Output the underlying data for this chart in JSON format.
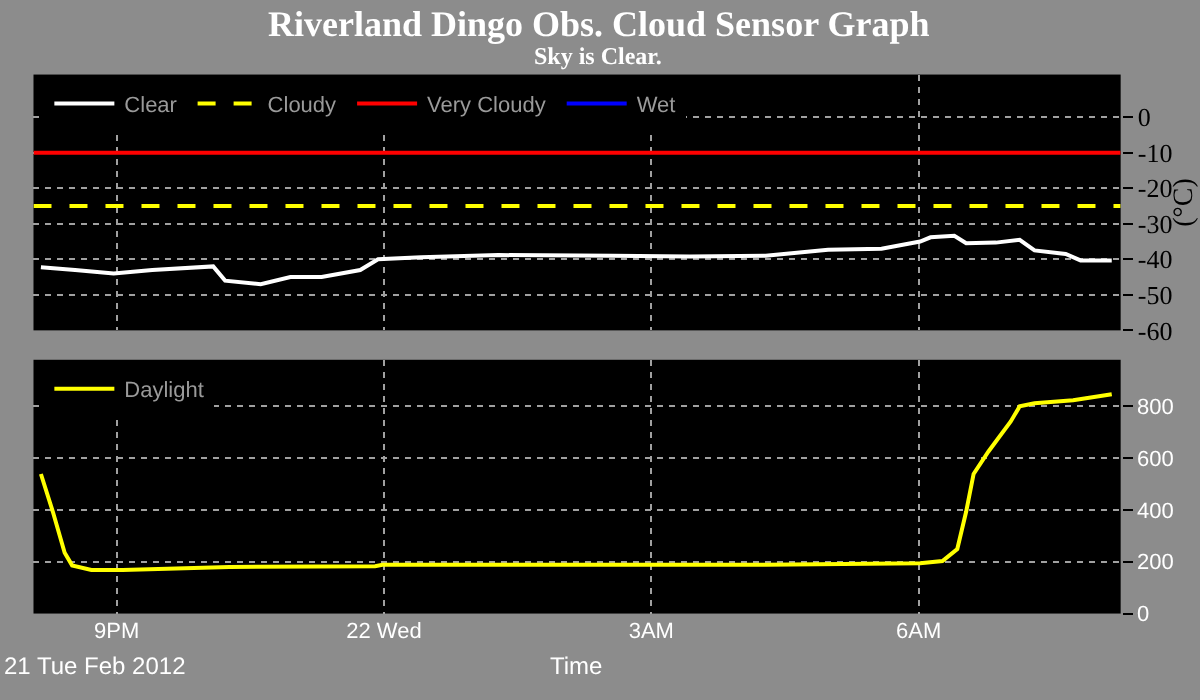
{
  "chart_data": [
    {
      "type": "line",
      "title": "Riverland Dingo Obs. Cloud Sensor Graph",
      "subtitle": "Sky is Clear.",
      "ylabel": "(°C)",
      "x": [
        "2012-02-21T20:09",
        "2012-02-21T20:32",
        "2012-02-21T20:58",
        "2012-02-21T21:24",
        "2012-02-21T22:05",
        "2012-02-21T22:13",
        "2012-02-21T22:37",
        "2012-02-21T22:57",
        "2012-02-21T23:18",
        "2012-02-21T23:44",
        "2012-02-21T23:56",
        "2012-02-22T00:25",
        "2012-02-22T01:17",
        "2012-02-22T02:34",
        "2012-02-22T03:26",
        "2012-02-22T04:17",
        "2012-02-22T04:59",
        "2012-02-22T05:35",
        "2012-02-22T06:01",
        "2012-02-22T06:08",
        "2012-02-22T06:24",
        "2012-02-22T06:32",
        "2012-02-22T06:52",
        "2012-02-22T07:08",
        "2012-02-22T07:18",
        "2012-02-22T07:39",
        "2012-02-22T07:49",
        "2012-02-22T08:10"
      ],
      "series": [
        {
          "name": "Clear",
          "color": "#ffffff",
          "values": [
            -42.2,
            -43,
            -44,
            -43,
            -42,
            -46,
            -47,
            -45,
            -45,
            -43,
            -40,
            -39.4,
            -38.8,
            -39,
            -39.2,
            -39,
            -37.3,
            -37,
            -35,
            -33.8,
            -33.4,
            -35.5,
            -35.3,
            -34.5,
            -37.5,
            -38.5,
            -40.3,
            -40.3
          ]
        },
        {
          "name": "Cloudy",
          "color": "#ffff00",
          "line_style": "dashed",
          "x": [
            "2012-02-21T20:04",
            "2012-02-22T08:16"
          ],
          "values": [
            -25,
            -25
          ]
        },
        {
          "name": "Very Cloudy",
          "color": "#ff0000",
          "x": [
            "2012-02-21T20:04",
            "2012-02-22T08:16"
          ],
          "values": [
            -10,
            -10
          ]
        },
        {
          "name": "Wet",
          "color": "#0000ff",
          "values": [
            null,
            null,
            null,
            null,
            null,
            null,
            null,
            null,
            null,
            null,
            null,
            null,
            null,
            null,
            null,
            null,
            null,
            null,
            null,
            null,
            null,
            null,
            null,
            null,
            null,
            null,
            null,
            null
          ]
        }
      ],
      "xlim": [
        "2012-02-21T20:04",
        "2012-02-22T08:16"
      ],
      "xticks": [
        {
          "value": "2012-02-21T21:00",
          "label": null
        },
        {
          "value": "2012-02-22T00:00",
          "label": null
        },
        {
          "value": "2012-02-22T03:00",
          "label": null
        },
        {
          "value": "2012-02-22T06:00",
          "label": null
        }
      ],
      "ylim": [
        -60,
        12
      ],
      "yticks": [
        0,
        -10,
        -20,
        -30,
        -40,
        -50,
        -60
      ],
      "tick_labels": "y",
      "grid": true,
      "legend": "top left",
      "line_style": "solid",
      "marker": "none"
    },
    {
      "type": "line",
      "xlabel": "Time",
      "annotations": [
        "21 Tue Feb 2012"
      ],
      "x": [
        "2012-02-21T20:09",
        "2012-02-21T20:17",
        "2012-02-21T20:25",
        "2012-02-21T20:30",
        "2012-02-21T20:43",
        "2012-02-21T21:04",
        "2012-02-21T22:16",
        "2012-02-21T23:54",
        "2012-02-21T23:59",
        "2012-02-22T02:34",
        "2012-02-22T04:17",
        "2012-02-22T06:01",
        "2012-02-22T06:16",
        "2012-02-22T06:26",
        "2012-02-22T06:32",
        "2012-02-22T06:37",
        "2012-02-22T06:47",
        "2012-02-22T07:02",
        "2012-02-22T07:08",
        "2012-02-22T07:18",
        "2012-02-22T07:44",
        "2012-02-22T08:10"
      ],
      "series": [
        {
          "name": "Daylight",
          "color": "#ffff00",
          "values": [
            539,
            394,
            235,
            186,
            168,
            168,
            180,
            183,
            188,
            188,
            188,
            194,
            203,
            249,
            394,
            539,
            626,
            742,
            800,
            812,
            824,
            847
          ]
        }
      ],
      "xlim": [
        "2012-02-21T20:04",
        "2012-02-22T08:16"
      ],
      "xticks": [
        {
          "value": "2012-02-21T21:00",
          "label": "9PM"
        },
        {
          "value": "2012-02-22T00:00",
          "label": "22 Wed"
        },
        {
          "value": "2012-02-22T03:00",
          "label": "3AM"
        },
        {
          "value": "2012-02-22T06:00",
          "label": "6AM"
        }
      ],
      "ylim": [
        0,
        980
      ],
      "yticks": [
        0,
        200,
        400,
        600,
        800
      ],
      "grid": true,
      "legend": "top left",
      "line_style": "solid",
      "marker": "none"
    }
  ]
}
